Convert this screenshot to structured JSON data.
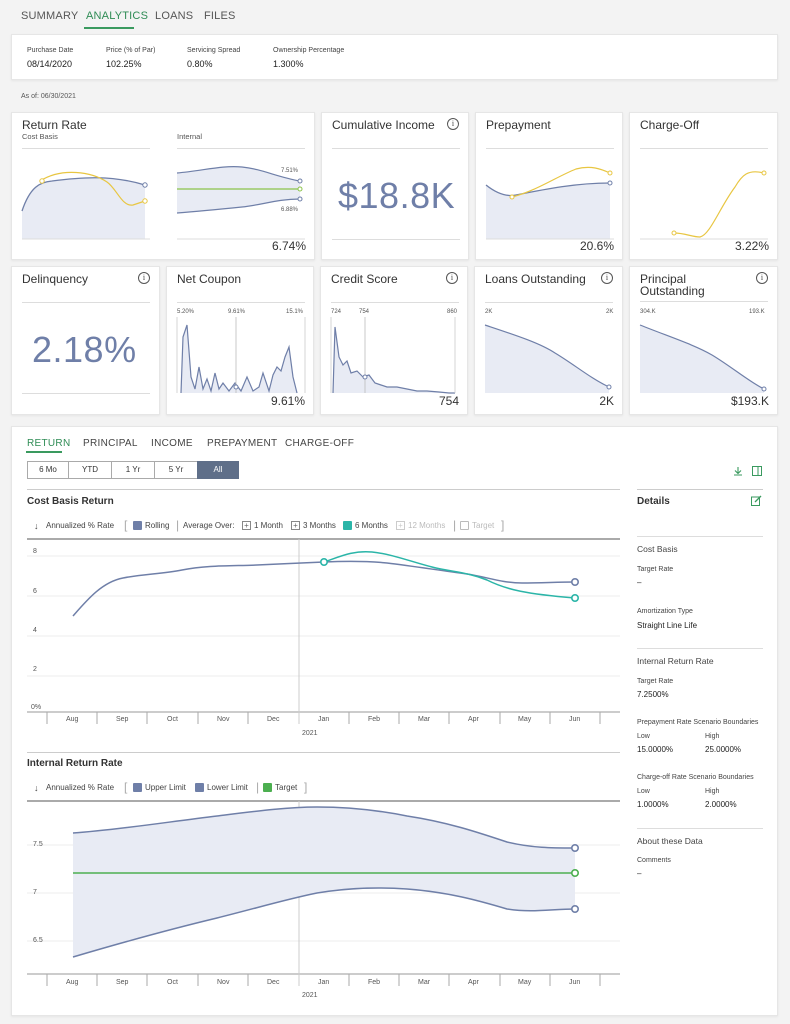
{
  "tabs": [
    {
      "label": "SUMMARY"
    },
    {
      "label": "ANALYTICS"
    },
    {
      "label": "LOANS"
    },
    {
      "label": "FILES"
    }
  ],
  "info": {
    "purchase_date_label": "Purchase Date",
    "purchase_date": "08/14/2020",
    "price_label": "Price (% of Par)",
    "price": "102.25%",
    "spread_label": "Servicing Spread",
    "spread": "0.80%",
    "ownership_label": "Ownership Percentage",
    "ownership": "1.300%"
  },
  "as_of": "As of: 06/30/2021",
  "tiles": {
    "return_rate": {
      "title": "Return Rate",
      "cost_basis": "Cost Basis",
      "internal": "Internal",
      "upper": "7.51%",
      "lower": "6.88%",
      "value": "6.74%"
    },
    "cumulative_income": {
      "title": "Cumulative Income",
      "value": "$18.8K"
    },
    "prepayment": {
      "title": "Prepayment",
      "value": "20.6%"
    },
    "charge_off": {
      "title": "Charge-Off",
      "value": "3.22%"
    },
    "delinquency": {
      "title": "Delinquency",
      "value": "2.18%"
    },
    "net_coupon": {
      "title": "Net Coupon",
      "min": "5.20%",
      "mid": "9.61%",
      "max": "15.1%",
      "value": "9.61%"
    },
    "credit_score": {
      "title": "Credit Score",
      "min": "724",
      "mid": "754",
      "max": "860",
      "value": "754"
    },
    "loans_outstanding": {
      "title": "Loans Outstanding",
      "left": "2K",
      "right": "2K",
      "value": "2K"
    },
    "principal_outstanding": {
      "title_1": "Principal",
      "title_2": "Outstanding",
      "left": "304.K",
      "right": "193.K",
      "value": "$193.K"
    }
  },
  "subtabs": [
    {
      "label": "RETURN"
    },
    {
      "label": "PRINCIPAL"
    },
    {
      "label": "INCOME"
    },
    {
      "label": "PREPAYMENT"
    },
    {
      "label": "CHARGE-OFF"
    }
  ],
  "ranges": [
    {
      "label": "6 Mo"
    },
    {
      "label": "YTD"
    },
    {
      "label": "1 Yr"
    },
    {
      "label": "5 Yr"
    },
    {
      "label": "All"
    }
  ],
  "cost_basis_chart": {
    "title": "Cost Basis Return",
    "legend": {
      "annualized": "Annualized % Rate",
      "rolling": "Rolling",
      "average_over": "Average Over:",
      "m1": "1 Month",
      "m3": "3 Months",
      "m6": "6 Months",
      "m12": "12 Months",
      "target": "Target"
    },
    "y_ticks": [
      "8",
      "6",
      "4",
      "2",
      "0%"
    ],
    "x_ticks": [
      "Aug",
      "Sep",
      "Oct",
      "Nov",
      "Dec",
      "Jan",
      "Feb",
      "Mar",
      "Apr",
      "May",
      "Jun"
    ],
    "year": "2021"
  },
  "internal_chart": {
    "title": "Internal Return Rate",
    "legend": {
      "annualized": "Annualized % Rate",
      "upper": "Upper Limit",
      "lower": "Lower Limit",
      "target": "Target"
    },
    "y_ticks": [
      "7.5",
      "7",
      "6.5"
    ],
    "x_ticks": [
      "Aug",
      "Sep",
      "Oct",
      "Nov",
      "Dec",
      "Jan",
      "Feb",
      "Mar",
      "Apr",
      "May",
      "Jun"
    ],
    "year": "2021"
  },
  "details": {
    "title": "Details",
    "cost_basis": "Cost Basis",
    "target_rate_label": "Target Rate",
    "target_rate_value": "–",
    "amortization_label": "Amortization Type",
    "amortization_value": "Straight Line Life",
    "internal_return": "Internal Return Rate",
    "internal_target_label": "Target Rate",
    "internal_target_value": "7.2500%",
    "prepay_label": "Prepayment Rate Scenario Boundaries",
    "low_label": "Low",
    "high_label": "High",
    "prepay_low": "15.0000%",
    "prepay_high": "25.0000%",
    "chargeoff_label": "Charge-off Rate Scenario Boundaries",
    "low_label_2": "Low",
    "high_label_2": "High",
    "chargeoff_low": "1.0000%",
    "chargeoff_high": "2.0000%",
    "about": "About these Data",
    "comments_label": "Comments",
    "comments_value": "–"
  },
  "colors": {
    "accent_green": "#3a9a5f",
    "series_blue": "#6f7fa8",
    "series_yellow": "#e8c642",
    "series_teal": "#2bb5a8",
    "target_green": "#4caf50",
    "fill": "#e8ebf4"
  }
}
